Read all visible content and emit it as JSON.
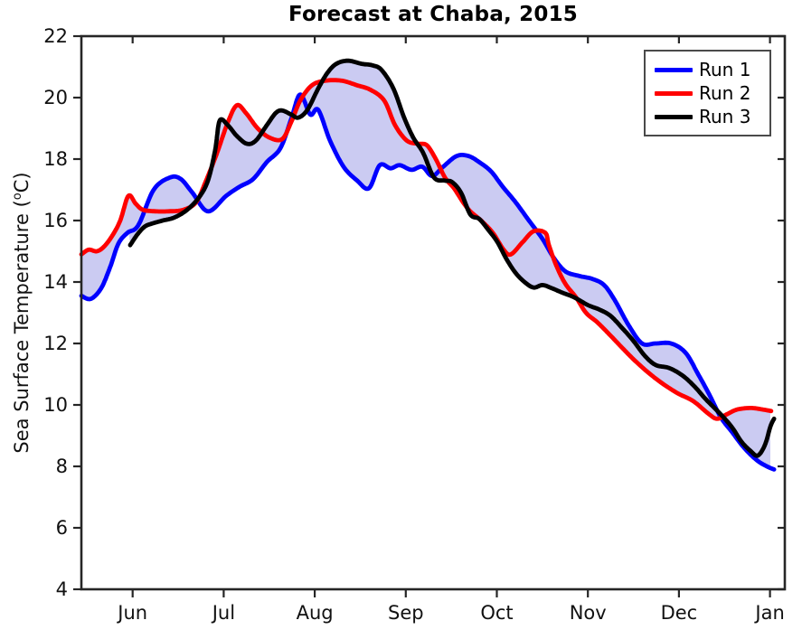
{
  "page": {
    "title": "Forecast at Chaba, 2015"
  },
  "ylabel": {
    "prefix": "Sea Surface Temperature (",
    "sup": "o",
    "suffix": "C)"
  },
  "legend": {
    "entries": [
      {
        "label": "Run 1",
        "color": "#0000ff"
      },
      {
        "label": "Run 2",
        "color": "#ff0000"
      },
      {
        "label": "Run 3",
        "color": "#000000"
      }
    ]
  },
  "chart_data": {
    "type": "line",
    "title": "Forecast at Chaba, 2015",
    "xlabel": "",
    "ylabel": "Sea Surface Temperature (°C)",
    "grid": false,
    "legend_position": "top-right",
    "x_axis": {
      "unit": "months after Jun 1, 2015",
      "tick_positions": [
        0,
        1,
        2,
        3,
        4,
        5,
        6,
        7
      ],
      "tick_labels": [
        "Jun",
        "Jul",
        "Aug",
        "Sep",
        "Oct",
        "Nov",
        "Dec",
        "Jan"
      ],
      "range": [
        -0.563,
        7.163
      ]
    },
    "y_axis": {
      "ticks": [
        4,
        6,
        8,
        10,
        12,
        14,
        16,
        18,
        20,
        22
      ],
      "range": [
        4,
        22
      ]
    },
    "fill": {
      "description": "light shaded band spanning min-to-max envelope of the three runs",
      "color": "#cbcbf2",
      "start_t": -0.563,
      "end_t": 7.013
    },
    "series": [
      {
        "name": "Run 1",
        "color": "#0000ff",
        "line_width": 4.8,
        "points": [
          [
            -0.563,
            13.55
          ],
          [
            -0.46,
            13.45
          ],
          [
            -0.345,
            13.8
          ],
          [
            -0.245,
            14.5
          ],
          [
            -0.156,
            15.25
          ],
          [
            -0.057,
            15.6
          ],
          [
            0.063,
            15.85
          ],
          [
            0.231,
            17.0
          ],
          [
            0.41,
            17.4
          ],
          [
            0.529,
            17.35
          ],
          [
            0.658,
            16.9
          ],
          [
            0.827,
            16.3
          ],
          [
            1.026,
            16.8
          ],
          [
            1.175,
            17.1
          ],
          [
            1.324,
            17.35
          ],
          [
            1.473,
            17.9
          ],
          [
            1.622,
            18.35
          ],
          [
            1.741,
            19.3
          ],
          [
            1.84,
            20.1
          ],
          [
            1.95,
            19.45
          ],
          [
            2.039,
            19.6
          ],
          [
            2.168,
            18.6
          ],
          [
            2.317,
            17.75
          ],
          [
            2.466,
            17.3
          ],
          [
            2.595,
            17.05
          ],
          [
            2.714,
            17.8
          ],
          [
            2.833,
            17.7
          ],
          [
            2.933,
            17.8
          ],
          [
            3.062,
            17.65
          ],
          [
            3.181,
            17.75
          ],
          [
            3.29,
            17.45
          ],
          [
            3.41,
            17.75
          ],
          [
            3.559,
            18.1
          ],
          [
            3.688,
            18.1
          ],
          [
            3.807,
            17.9
          ],
          [
            3.936,
            17.6
          ],
          [
            4.065,
            17.1
          ],
          [
            4.205,
            16.6
          ],
          [
            4.353,
            16.0
          ],
          [
            4.502,
            15.4
          ],
          [
            4.622,
            14.8
          ],
          [
            4.751,
            14.35
          ],
          [
            4.9,
            14.2
          ],
          [
            5.049,
            14.1
          ],
          [
            5.178,
            13.9
          ],
          [
            5.297,
            13.4
          ],
          [
            5.446,
            12.6
          ],
          [
            5.595,
            12.0
          ],
          [
            5.744,
            12.0
          ],
          [
            5.913,
            12.0
          ],
          [
            6.072,
            11.7
          ],
          [
            6.211,
            11.0
          ],
          [
            6.34,
            10.3
          ],
          [
            6.459,
            9.6
          ],
          [
            6.588,
            9.1
          ],
          [
            6.717,
            8.6
          ],
          [
            6.856,
            8.2
          ],
          [
            6.966,
            8.0
          ],
          [
            7.045,
            7.9
          ]
        ]
      },
      {
        "name": "Run 2",
        "color": "#ff0000",
        "line_width": 4.8,
        "points": [
          [
            -0.563,
            14.9
          ],
          [
            -0.483,
            15.05
          ],
          [
            -0.394,
            15.0
          ],
          [
            -0.315,
            15.15
          ],
          [
            -0.225,
            15.5
          ],
          [
            -0.136,
            16.0
          ],
          [
            -0.047,
            16.8
          ],
          [
            0.033,
            16.55
          ],
          [
            0.112,
            16.35
          ],
          [
            0.251,
            16.3
          ],
          [
            0.4,
            16.3
          ],
          [
            0.559,
            16.35
          ],
          [
            0.698,
            16.6
          ],
          [
            0.807,
            17.3
          ],
          [
            0.927,
            18.2
          ],
          [
            1.046,
            19.2
          ],
          [
            1.145,
            19.75
          ],
          [
            1.244,
            19.5
          ],
          [
            1.373,
            19.0
          ],
          [
            1.503,
            18.7
          ],
          [
            1.642,
            18.65
          ],
          [
            1.741,
            19.2
          ],
          [
            1.84,
            19.9
          ],
          [
            1.969,
            20.4
          ],
          [
            2.118,
            20.55
          ],
          [
            2.297,
            20.55
          ],
          [
            2.466,
            20.4
          ],
          [
            2.615,
            20.25
          ],
          [
            2.764,
            19.9
          ],
          [
            2.883,
            19.1
          ],
          [
            3.012,
            18.6
          ],
          [
            3.131,
            18.5
          ],
          [
            3.231,
            18.45
          ],
          [
            3.33,
            18.0
          ],
          [
            3.43,
            17.4
          ],
          [
            3.529,
            17.05
          ],
          [
            3.628,
            16.6
          ],
          [
            3.708,
            16.3
          ],
          [
            3.827,
            16.0
          ],
          [
            3.956,
            15.6
          ],
          [
            4.075,
            15.05
          ],
          [
            4.155,
            14.9
          ],
          [
            4.284,
            15.3
          ],
          [
            4.403,
            15.65
          ],
          [
            4.532,
            15.6
          ],
          [
            4.572,
            15.2
          ],
          [
            4.651,
            14.55
          ],
          [
            4.751,
            13.95
          ],
          [
            4.87,
            13.5
          ],
          [
            4.979,
            13.0
          ],
          [
            5.099,
            12.7
          ],
          [
            5.218,
            12.35
          ],
          [
            5.347,
            11.95
          ],
          [
            5.496,
            11.5
          ],
          [
            5.645,
            11.1
          ],
          [
            5.794,
            10.75
          ],
          [
            5.973,
            10.4
          ],
          [
            6.112,
            10.2
          ],
          [
            6.191,
            10.05
          ],
          [
            6.33,
            9.7
          ],
          [
            6.42,
            9.55
          ],
          [
            6.53,
            9.7
          ],
          [
            6.64,
            9.85
          ],
          [
            6.79,
            9.9
          ],
          [
            6.92,
            9.85
          ],
          [
            7.013,
            9.8
          ]
        ]
      },
      {
        "name": "Run 3",
        "color": "#000000",
        "line_width": 4.8,
        "points": [
          [
            -0.027,
            15.2
          ],
          [
            0.053,
            15.55
          ],
          [
            0.132,
            15.8
          ],
          [
            0.212,
            15.9
          ],
          [
            0.331,
            16.0
          ],
          [
            0.46,
            16.1
          ],
          [
            0.599,
            16.35
          ],
          [
            0.728,
            16.75
          ],
          [
            0.827,
            17.3
          ],
          [
            0.907,
            18.3
          ],
          [
            0.956,
            19.25
          ],
          [
            1.046,
            19.1
          ],
          [
            1.145,
            18.75
          ],
          [
            1.254,
            18.5
          ],
          [
            1.353,
            18.6
          ],
          [
            1.473,
            19.1
          ],
          [
            1.572,
            19.5
          ],
          [
            1.642,
            19.58
          ],
          [
            1.741,
            19.45
          ],
          [
            1.82,
            19.35
          ],
          [
            1.919,
            19.6
          ],
          [
            2.039,
            20.3
          ],
          [
            2.138,
            20.8
          ],
          [
            2.237,
            21.1
          ],
          [
            2.366,
            21.2
          ],
          [
            2.515,
            21.1
          ],
          [
            2.634,
            21.05
          ],
          [
            2.734,
            20.9
          ],
          [
            2.863,
            20.3
          ],
          [
            2.982,
            19.35
          ],
          [
            3.082,
            18.7
          ],
          [
            3.191,
            18.2
          ],
          [
            3.31,
            17.4
          ],
          [
            3.43,
            17.3
          ],
          [
            3.509,
            17.25
          ],
          [
            3.608,
            16.9
          ],
          [
            3.708,
            16.2
          ],
          [
            3.807,
            16.05
          ],
          [
            3.906,
            15.7
          ],
          [
            4.006,
            15.3
          ],
          [
            4.105,
            14.75
          ],
          [
            4.205,
            14.3
          ],
          [
            4.304,
            14.0
          ],
          [
            4.403,
            13.82
          ],
          [
            4.502,
            13.9
          ],
          [
            4.602,
            13.8
          ],
          [
            4.721,
            13.65
          ],
          [
            4.85,
            13.5
          ],
          [
            4.999,
            13.25
          ],
          [
            5.128,
            13.1
          ],
          [
            5.248,
            12.9
          ],
          [
            5.377,
            12.5
          ],
          [
            5.496,
            12.1
          ],
          [
            5.625,
            11.6
          ],
          [
            5.744,
            11.3
          ],
          [
            5.893,
            11.2
          ],
          [
            6.042,
            10.95
          ],
          [
            6.171,
            10.6
          ],
          [
            6.29,
            10.2
          ],
          [
            6.39,
            9.9
          ],
          [
            6.489,
            9.6
          ],
          [
            6.588,
            9.25
          ],
          [
            6.687,
            8.8
          ],
          [
            6.787,
            8.5
          ],
          [
            6.866,
            8.35
          ],
          [
            6.945,
            8.7
          ],
          [
            7.005,
            9.3
          ],
          [
            7.045,
            9.55
          ]
        ]
      }
    ]
  }
}
